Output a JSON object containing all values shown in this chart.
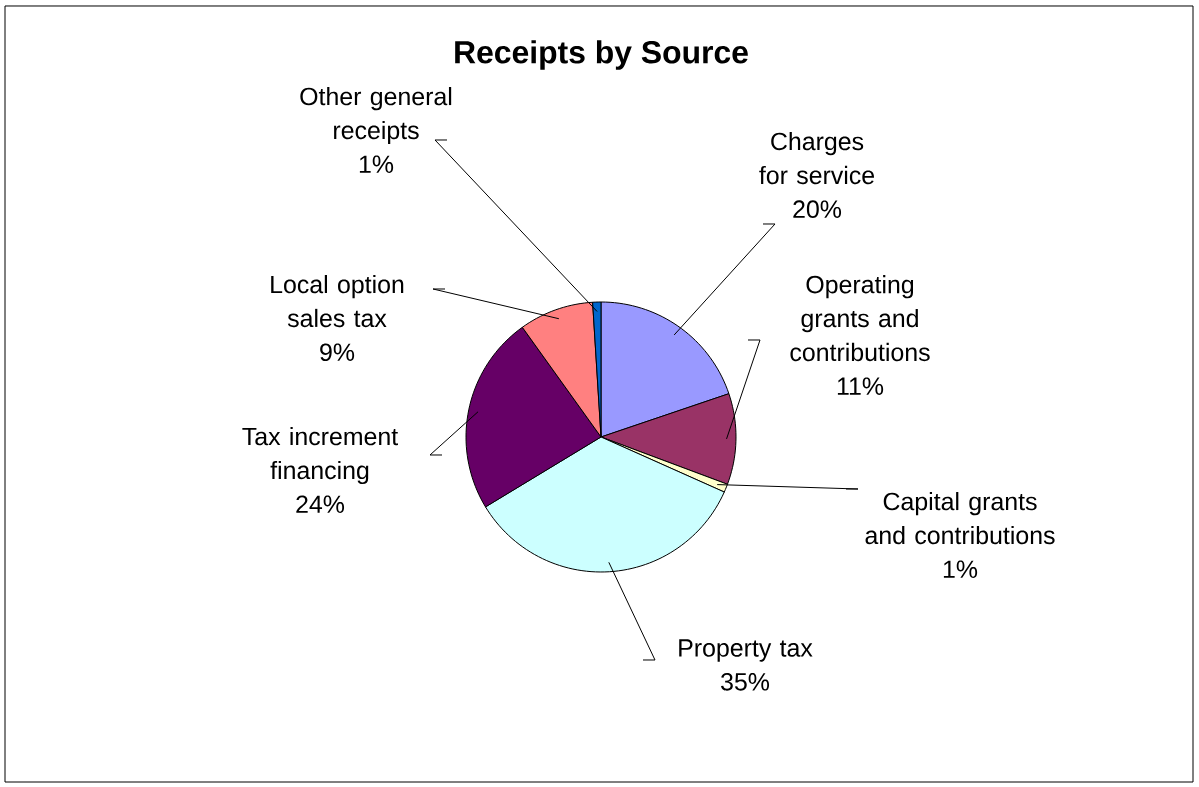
{
  "chart_data": {
    "type": "pie",
    "title": "Receipts by Source",
    "categories": [
      "Charges for service",
      "Operating grants and contributions",
      "Capital grants and contributions",
      "Property tax",
      "Tax increment financing",
      "Local option sales tax",
      "Other general receipts"
    ],
    "values": [
      20,
      11,
      1,
      35,
      24,
      9,
      1
    ],
    "value_labels": [
      "20%",
      "11%",
      "1%",
      "35%",
      "24%",
      "9%",
      "1%"
    ],
    "colors": [
      "#9999ff",
      "#993366",
      "#ffffcc",
      "#ccffff",
      "#660066",
      "#ff8080",
      "#0066cc"
    ]
  }
}
